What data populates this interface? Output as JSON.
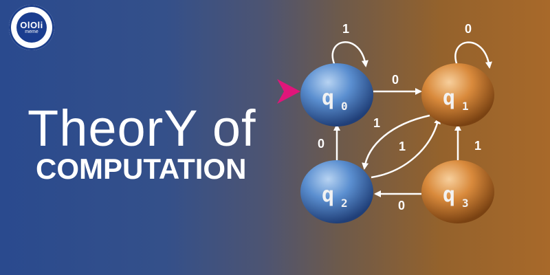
{
  "logo": {
    "mark": "OlOli",
    "sub": "meme"
  },
  "title": {
    "line1": "TheorY of",
    "line2": "COMPUTATION"
  },
  "automaton": {
    "start_state": "q0",
    "states": [
      {
        "id": "q0",
        "name": "q",
        "sub": "0",
        "color": "#5b8fd0"
      },
      {
        "id": "q1",
        "name": "q",
        "sub": "1",
        "color": "#d98a3c"
      },
      {
        "id": "q2",
        "name": "q",
        "sub": "2",
        "color": "#5b8fd0"
      },
      {
        "id": "q3",
        "name": "q",
        "sub": "3",
        "color": "#d98a3c"
      }
    ],
    "transitions": [
      {
        "from": "q0",
        "to": "q0",
        "label": "1"
      },
      {
        "from": "q1",
        "to": "q1",
        "label": "0"
      },
      {
        "from": "q0",
        "to": "q1",
        "label": "0"
      },
      {
        "from": "q2",
        "to": "q0",
        "label": "0"
      },
      {
        "from": "q1",
        "to": "q2",
        "label": "1"
      },
      {
        "from": "q2",
        "to": "q1",
        "label": "1"
      },
      {
        "from": "q3",
        "to": "q1",
        "label": "1"
      },
      {
        "from": "q3",
        "to": "q2",
        "label": "0"
      }
    ]
  },
  "colors": {
    "start_arrow": "#e0157a",
    "blue_state": "#5b8fd0",
    "orange_state": "#d98a3c"
  }
}
